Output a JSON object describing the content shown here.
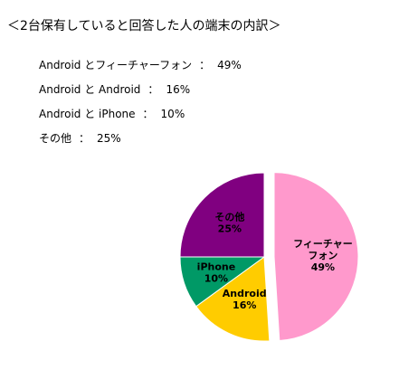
{
  "title": "＜2台保有していると回答した人の端末の内訳＞",
  "breakdown": [
    {
      "label": "Android とフィーチャーフォン",
      "sep": "：",
      "value": "49%"
    },
    {
      "label": "Android と Android",
      "sep": "：",
      "value": "16%"
    },
    {
      "label": "Android と iPhone",
      "sep": "：",
      "value": "10%"
    },
    {
      "label": "その他",
      "sep": "：",
      "value": "25%"
    }
  ],
  "chart_data": {
    "type": "pie",
    "title": "",
    "slices": [
      {
        "label_lines": [
          "フィーチャー",
          "フォン"
        ],
        "value": 49,
        "value_label": "49%",
        "color": "#ff99cc",
        "exploded": true
      },
      {
        "label_lines": [
          "Android"
        ],
        "value": 16,
        "value_label": "16%",
        "color": "#ffcc00",
        "exploded": false
      },
      {
        "label_lines": [
          "iPhone"
        ],
        "value": 10,
        "value_label": "10%",
        "color": "#009966",
        "exploded": false
      },
      {
        "label_lines": [
          "その他"
        ],
        "value": 25,
        "value_label": "25%",
        "color": "#800080",
        "exploded": false
      }
    ]
  }
}
